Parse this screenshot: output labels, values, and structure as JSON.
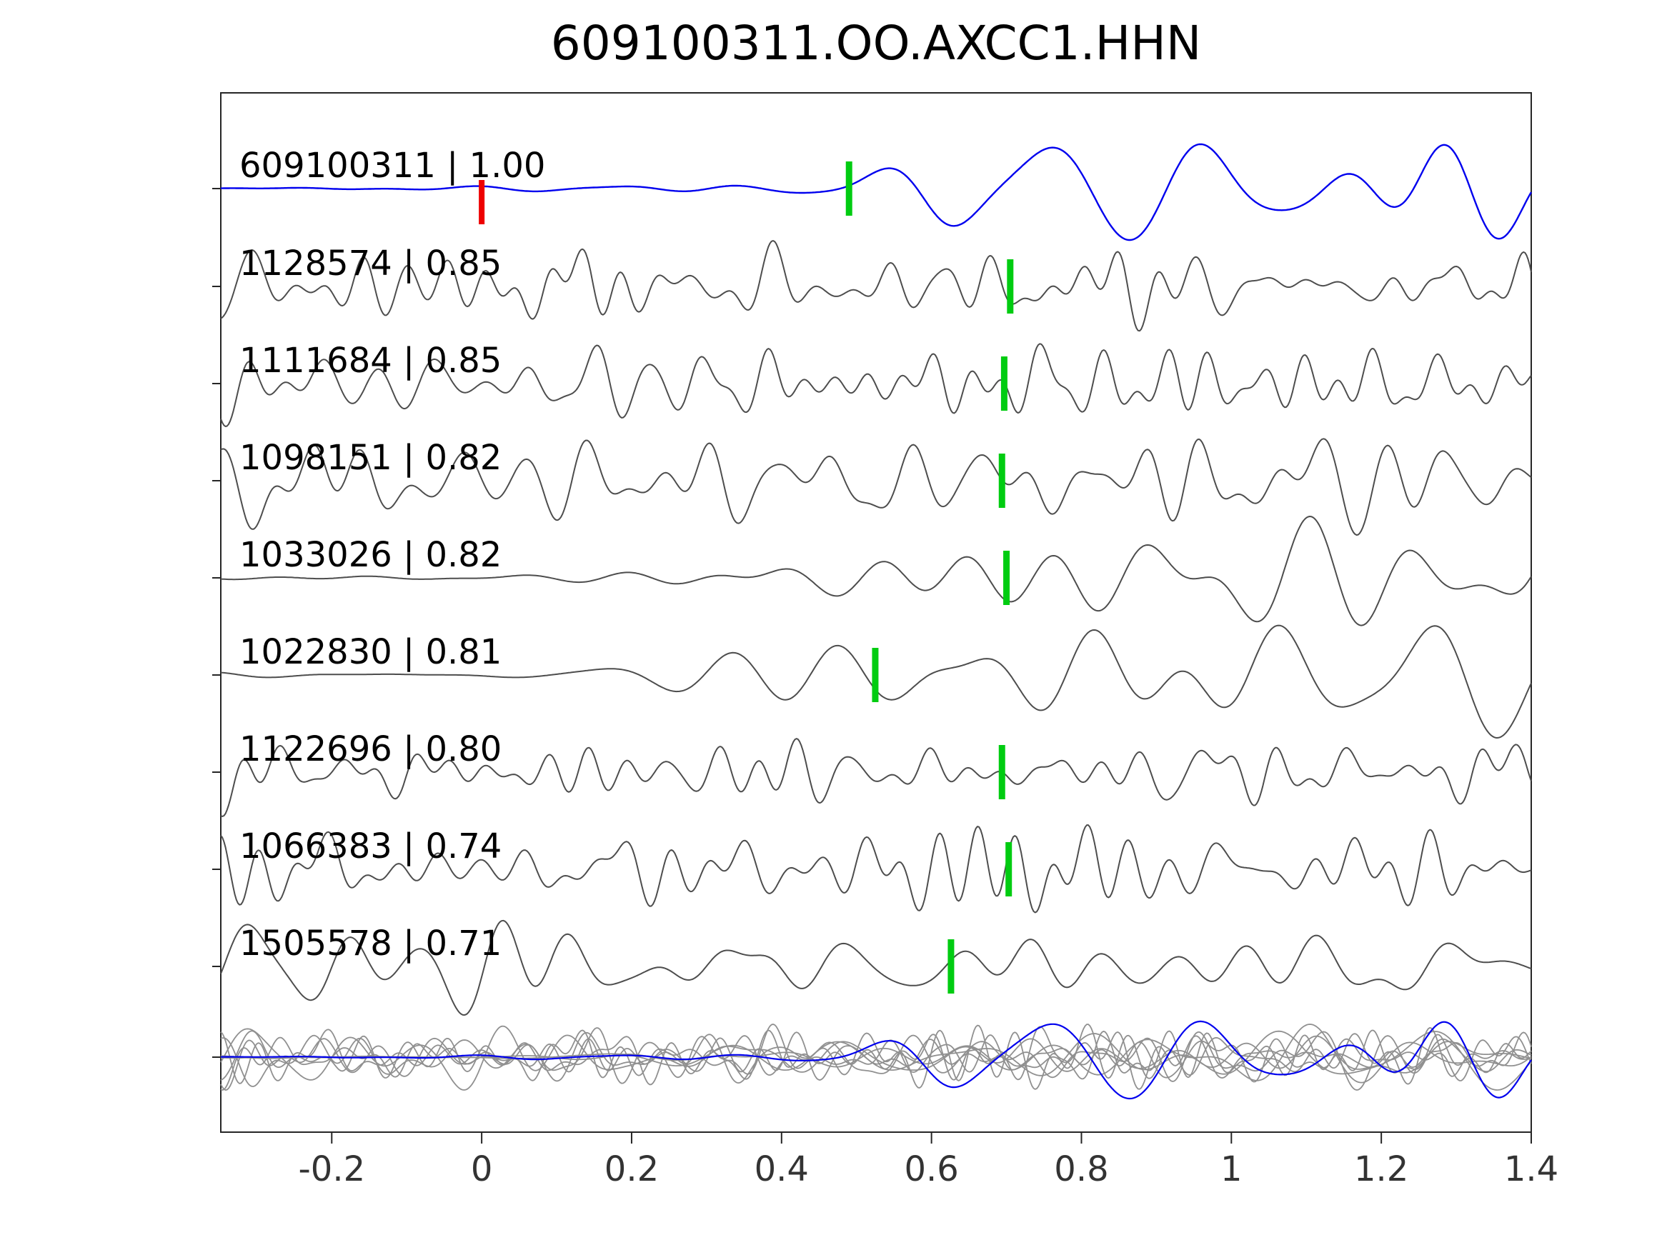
{
  "chart_data": {
    "type": "line",
    "title": "609100311.OO.AXCC1.HHN",
    "xlim": [
      -0.348,
      1.4
    ],
    "grid": false,
    "legend": "none",
    "x_ticks": [
      {
        "value": -0.2,
        "label": "-0.2"
      },
      {
        "value": 0,
        "label": "0"
      },
      {
        "value": 0.2,
        "label": "0.2"
      },
      {
        "value": 0.4,
        "label": "0.4"
      },
      {
        "value": 0.6,
        "label": "0.6"
      },
      {
        "value": 0.8,
        "label": "0.8"
      },
      {
        "value": 1,
        "label": "1"
      },
      {
        "value": 1.2,
        "label": "1.2"
      },
      {
        "value": 1.4,
        "label": "1.4"
      }
    ],
    "colors": {
      "reference": "#0000ee",
      "match": "#4d4d4d",
      "overlay": "#909090",
      "pick": "#00cc11",
      "reference_marker": "#ee0000",
      "axis": "#262626",
      "tick_label": "#333333",
      "label_text": "#000000"
    },
    "traces": [
      {
        "id": "609100311",
        "correlation": 1.0,
        "label": "609100311 | 1.00",
        "role": "reference",
        "waveform": "emergent-low-frequency",
        "marker_x": 0.0,
        "pick_x": 0.49
      },
      {
        "id": "1128574",
        "correlation": 0.85,
        "label": "1128574 | 0.85",
        "role": "match",
        "waveform": "noisy",
        "pick_x": 0.705
      },
      {
        "id": "1111684",
        "correlation": 0.85,
        "label": "1111684 | 0.85",
        "role": "match",
        "waveform": "noisy",
        "pick_x": 0.697
      },
      {
        "id": "1098151",
        "correlation": 0.82,
        "label": "1098151 | 0.82",
        "role": "match",
        "waveform": "noisy",
        "pick_x": 0.694
      },
      {
        "id": "1033026",
        "correlation": 0.82,
        "label": "1033026 | 0.82",
        "role": "match",
        "waveform": "emergent",
        "pick_x": 0.7
      },
      {
        "id": "1022830",
        "correlation": 0.81,
        "label": "1022830 | 0.81",
        "role": "match",
        "waveform": "emergent",
        "pick_x": 0.525
      },
      {
        "id": "1122696",
        "correlation": 0.8,
        "label": "1122696 | 0.80",
        "role": "match",
        "waveform": "noisy",
        "pick_x": 0.694
      },
      {
        "id": "1066383",
        "correlation": 0.74,
        "label": "1066383 | 0.74",
        "role": "match",
        "waveform": "noisy",
        "pick_x": 0.703
      },
      {
        "id": "1505578",
        "correlation": 0.71,
        "label": "1505578 | 0.71",
        "role": "match",
        "waveform": "noisy",
        "pick_x": 0.626
      }
    ],
    "overlay": {
      "description": "All nine traces superimposed at the bottom, matches in gray with the reference trace in blue"
    }
  }
}
